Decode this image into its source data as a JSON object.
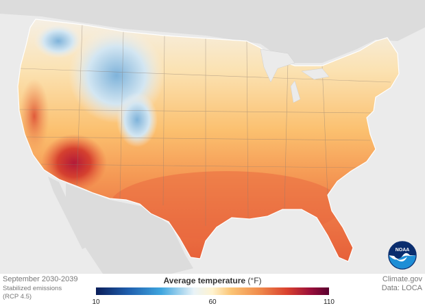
{
  "map": {
    "period_label": "September 2030-2039",
    "scenario_label_line1": "Stabilized emissions",
    "scenario_label_line2": "(RCP 4.5)",
    "legend_title": "Average temperature",
    "legend_unit": "(°F)",
    "legend_ticks": [
      "10",
      "60",
      "110"
    ],
    "credit_source": "Climate.gov",
    "credit_data": "Data: LOCA",
    "logo_text": "NOAA",
    "colors": {
      "cold": "#1f5fae",
      "cool": "#e9f3f8",
      "mild": "#fbc474",
      "warm": "#f08c4c",
      "hot": "#d9412f",
      "extreme": "#9a0f3a",
      "land_background": "#dcdcdc",
      "water_background": "#ebebeb"
    }
  }
}
